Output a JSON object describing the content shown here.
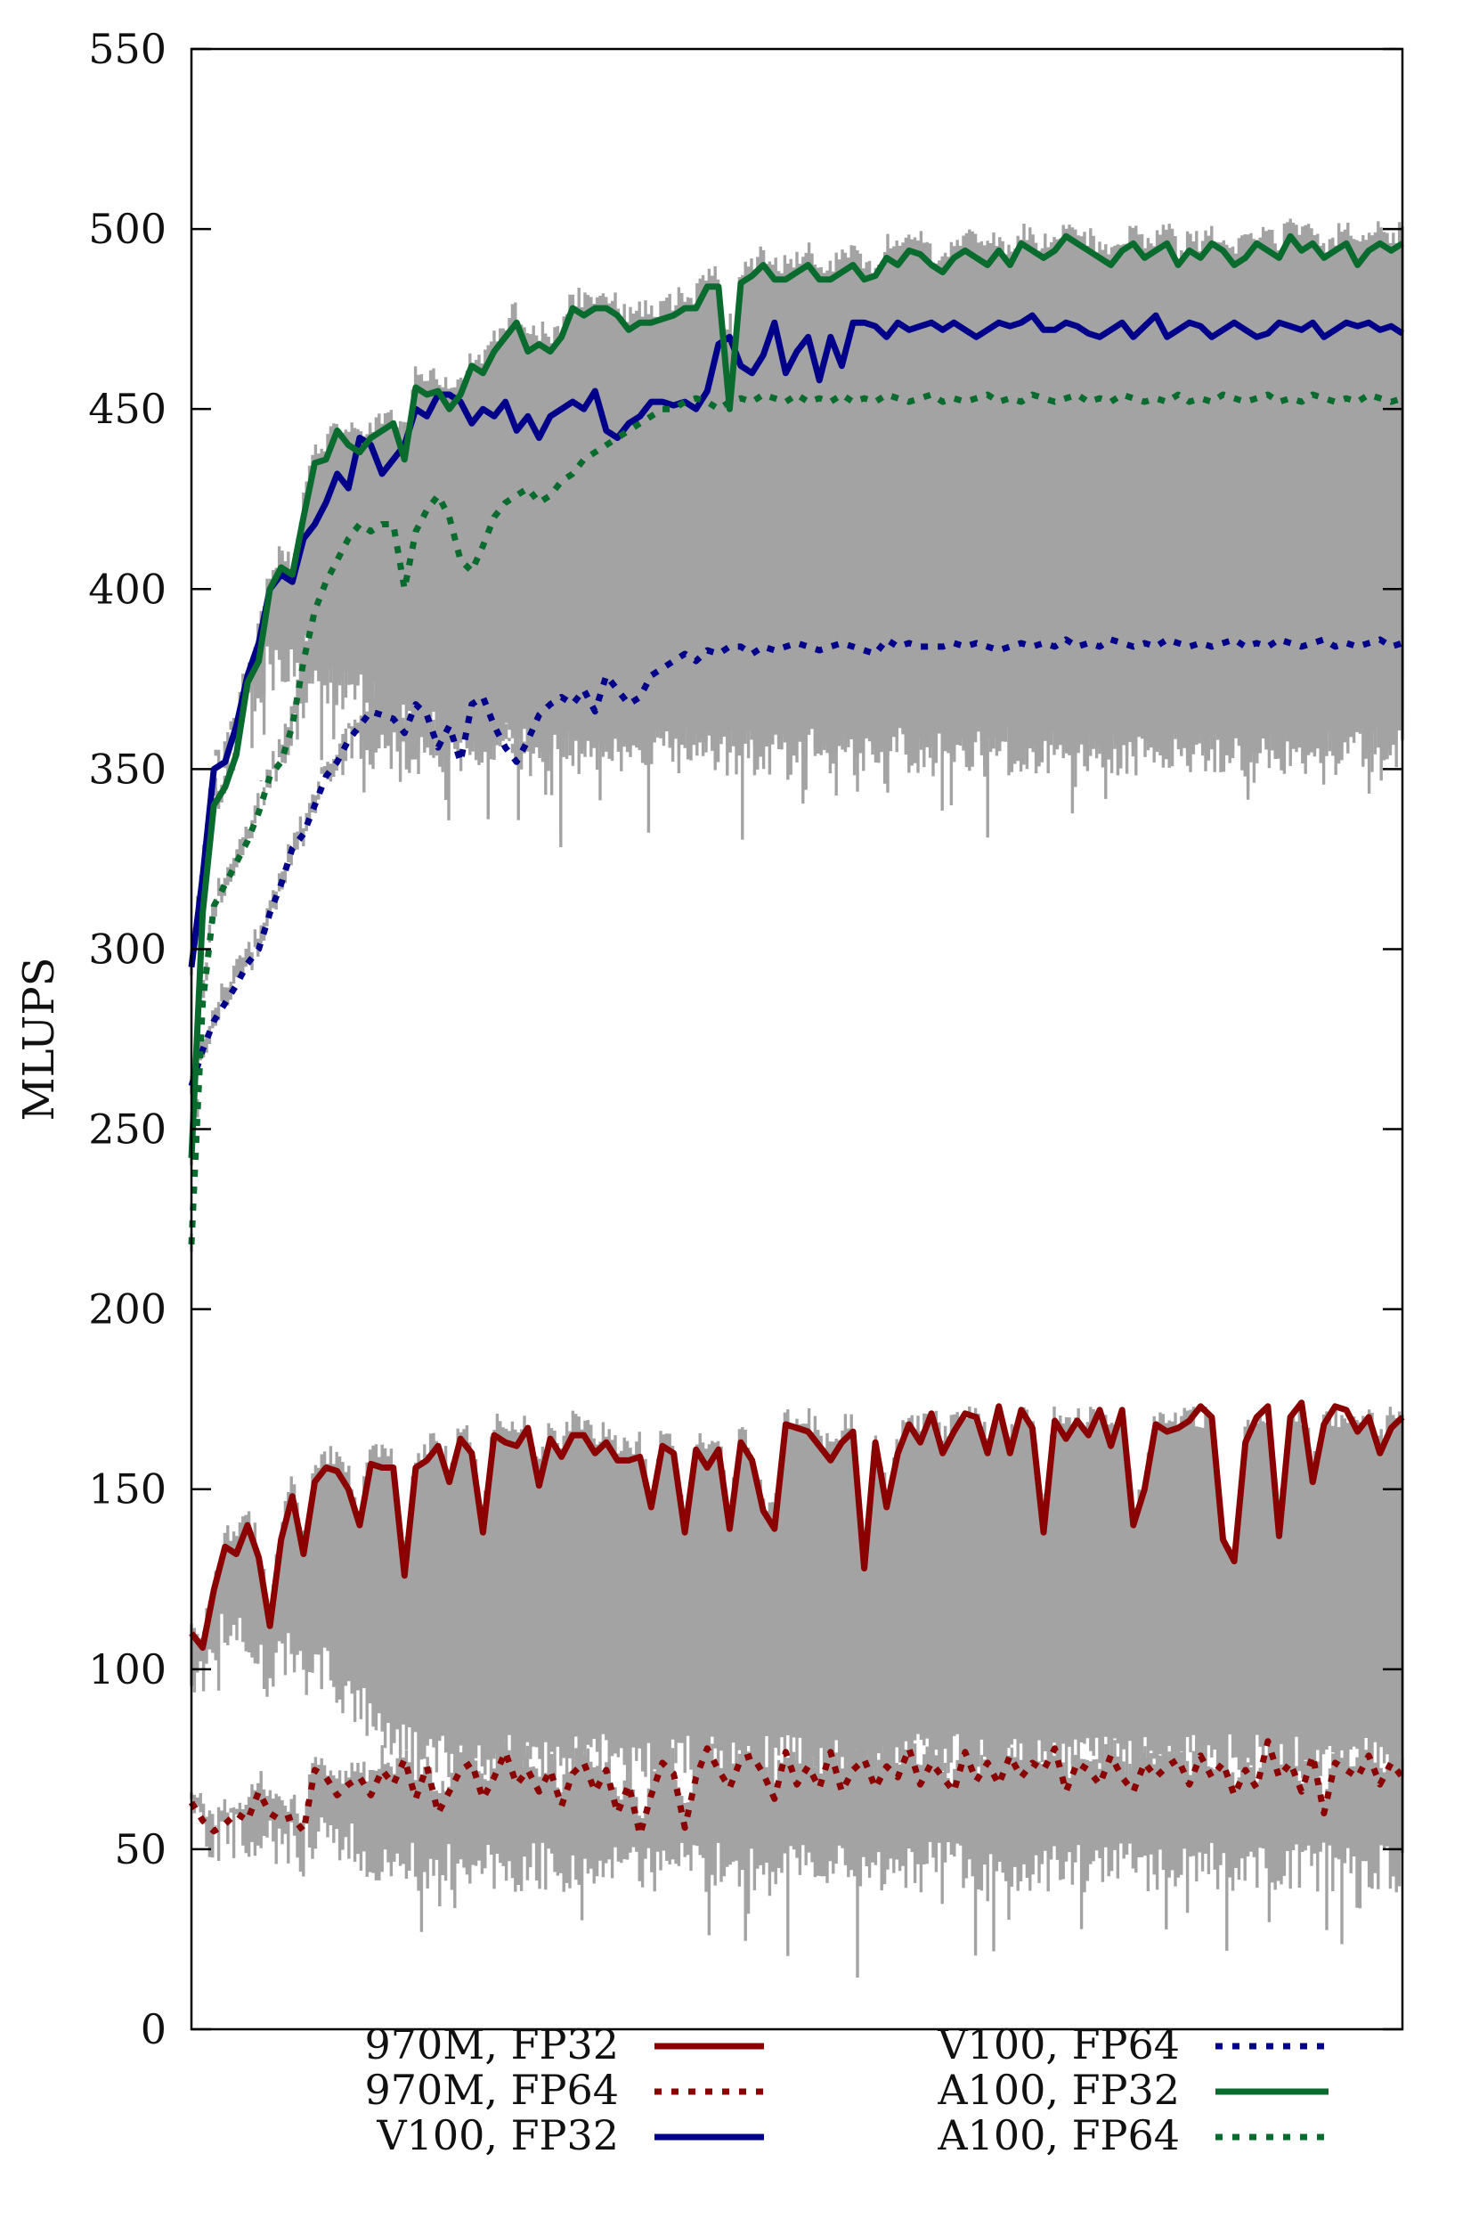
{
  "chart_data": {
    "type": "line",
    "title": "",
    "xlabel": "",
    "ylabel": "MLUPS",
    "ylim": [
      0,
      550
    ],
    "xlim": [
      0,
      200
    ],
    "yticks": [
      "0",
      "50",
      "100",
      "150",
      "200",
      "250",
      "300",
      "350",
      "400",
      "450",
      "500",
      "550"
    ],
    "grid": false,
    "legend_position": "bottom",
    "series": [
      {
        "name": "970M, FP32",
        "color": "#8b0000",
        "dash": "solid",
        "band": [
          75,
          170
        ],
        "values": [
          110,
          106,
          122,
          134,
          132,
          140,
          131,
          112,
          136,
          148,
          132,
          152,
          156,
          155,
          150,
          140,
          157,
          156,
          156,
          126,
          156,
          158,
          162,
          152,
          164,
          160,
          138,
          165,
          163,
          162,
          167,
          151,
          164,
          159,
          165,
          165,
          160,
          163,
          158,
          158,
          159,
          145,
          162,
          160,
          138,
          161,
          156,
          161,
          139,
          163,
          158,
          144,
          139,
          168,
          167,
          166,
          162,
          158,
          163,
          166,
          128,
          163,
          145,
          160,
          168,
          163,
          171,
          160,
          166,
          171,
          170,
          160,
          173,
          160,
          172,
          167,
          138,
          169,
          164,
          169,
          165,
          172,
          162,
          172,
          140,
          150,
          168,
          166,
          167,
          169,
          173,
          170,
          136,
          130,
          163,
          170,
          173,
          137,
          170,
          174,
          152,
          168,
          173,
          172,
          166,
          170,
          160,
          167,
          170
        ]
      },
      {
        "name": "970M, FP64",
        "color": "#8b0000",
        "dash": "dotted",
        "band": [
          45,
          78
        ],
        "values": [
          63,
          58,
          55,
          57,
          60,
          58,
          66,
          60,
          58,
          59,
          55,
          72,
          70,
          65,
          68,
          70,
          65,
          72,
          68,
          75,
          64,
          73,
          60,
          66,
          72,
          74,
          64,
          70,
          77,
          68,
          72,
          66,
          72,
          62,
          71,
          74,
          66,
          72,
          60,
          68,
          54,
          65,
          74,
          71,
          56,
          70,
          78,
          72,
          67,
          75,
          76,
          71,
          64,
          77,
          68,
          73,
          67,
          77,
          66,
          72,
          75,
          67,
          73,
          70,
          78,
          68,
          74,
          70,
          66,
          77,
          69,
          74,
          68,
          76,
          70,
          74,
          72,
          78,
          66,
          74,
          72,
          68,
          76,
          70,
          66,
          74,
          70,
          73,
          75,
          68,
          76,
          70,
          74,
          65,
          72,
          67,
          80,
          70,
          74,
          66,
          76,
          60,
          74,
          72,
          70,
          76,
          68,
          74,
          70
        ]
      },
      {
        "name": "V100, FP32",
        "color": "#00008b",
        "dash": "solid",
        "band": [
          360,
          478
        ],
        "values": [
          295,
          320,
          350,
          352,
          362,
          376,
          385,
          400,
          404,
          402,
          414,
          418,
          424,
          432,
          428,
          442,
          440,
          432,
          436,
          440,
          450,
          448,
          454,
          454,
          452,
          446,
          450,
          448,
          452,
          444,
          448,
          442,
          448,
          450,
          452,
          450,
          455,
          444,
          442,
          446,
          448,
          452,
          452,
          451,
          452,
          450,
          455,
          468,
          470,
          462,
          460,
          465,
          474,
          460,
          466,
          470,
          458,
          470,
          462,
          474,
          474,
          473,
          470,
          474,
          472,
          473,
          474,
          472,
          474,
          472,
          470,
          472,
          474,
          473,
          474,
          476,
          472,
          472,
          474,
          473,
          471,
          470,
          472,
          474,
          470,
          473,
          476,
          470,
          472,
          474,
          473,
          470,
          472,
          474,
          472,
          470,
          471,
          474,
          473,
          472,
          474,
          470,
          472,
          474,
          473,
          474,
          472,
          473,
          471
        ]
      },
      {
        "name": "V100, FP64",
        "color": "#00008b",
        "dash": "dotted",
        "band": [
          355,
          388
        ],
        "values": [
          262,
          272,
          280,
          285,
          290,
          296,
          300,
          310,
          318,
          328,
          332,
          340,
          348,
          352,
          358,
          362,
          366,
          365,
          364,
          360,
          368,
          365,
          356,
          362,
          352,
          368,
          370,
          362,
          356,
          352,
          358,
          365,
          368,
          370,
          368,
          372,
          366,
          376,
          372,
          368,
          370,
          376,
          378,
          380,
          382,
          380,
          383,
          382,
          384,
          384,
          382,
          384,
          383,
          384,
          385,
          384,
          383,
          384,
          385,
          384,
          383,
          382,
          386,
          384,
          385,
          384,
          384,
          384,
          385,
          384,
          385,
          384,
          383,
          384,
          385,
          384,
          385,
          384,
          386,
          384,
          385,
          384,
          386,
          385,
          384,
          385,
          384,
          386,
          385,
          384,
          385,
          384,
          385,
          386,
          384,
          385,
          384,
          386,
          385,
          384,
          385,
          386,
          384,
          385,
          384,
          385,
          386,
          384,
          385
        ]
      },
      {
        "name": "A100, FP32",
        "color": "#0a6b2f",
        "dash": "solid",
        "band": [
          380,
          500
        ],
        "values": [
          242,
          310,
          340,
          345,
          354,
          374,
          380,
          400,
          406,
          404,
          420,
          435,
          436,
          444,
          440,
          438,
          442,
          444,
          446,
          436,
          456,
          454,
          455,
          450,
          454,
          462,
          460,
          466,
          470,
          474,
          466,
          468,
          466,
          470,
          478,
          476,
          478,
          478,
          476,
          472,
          474,
          474,
          475,
          476,
          478,
          478,
          484,
          484,
          450,
          485,
          487,
          490,
          486,
          486,
          488,
          490,
          486,
          486,
          488,
          490,
          486,
          487,
          492,
          490,
          494,
          493,
          490,
          488,
          492,
          494,
          492,
          490,
          494,
          490,
          496,
          494,
          492,
          494,
          498,
          496,
          494,
          492,
          490,
          494,
          496,
          492,
          494,
          496,
          490,
          494,
          492,
          496,
          494,
          490,
          492,
          496,
          494,
          492,
          498,
          494,
          496,
          492,
          494,
          496,
          490,
          494,
          496,
          494,
          496
        ]
      },
      {
        "name": "A100, FP64",
        "color": "#0a6b2f",
        "dash": "dotted",
        "band": [
          360,
          458
        ],
        "values": [
          218,
          285,
          312,
          318,
          324,
          330,
          338,
          348,
          352,
          362,
          380,
          394,
          402,
          408,
          414,
          418,
          416,
          418,
          418,
          400,
          416,
          422,
          426,
          420,
          408,
          405,
          412,
          420,
          424,
          426,
          428,
          424,
          426,
          430,
          432,
          436,
          438,
          440,
          442,
          444,
          446,
          448,
          450,
          450,
          452,
          453,
          452,
          450,
          452,
          453,
          452,
          454,
          453,
          452,
          454,
          452,
          453,
          452,
          454,
          452,
          453,
          452,
          454,
          453,
          452,
          453,
          454,
          452,
          453,
          452,
          453,
          454,
          452,
          453,
          452,
          454,
          453,
          452,
          453,
          454,
          452,
          453,
          452,
          454,
          453,
          452,
          453,
          452,
          454,
          452,
          453,
          452,
          454,
          453,
          452,
          453,
          454,
          452,
          453,
          452,
          454,
          453,
          452,
          453,
          452,
          454,
          453,
          452,
          453
        ]
      }
    ]
  }
}
